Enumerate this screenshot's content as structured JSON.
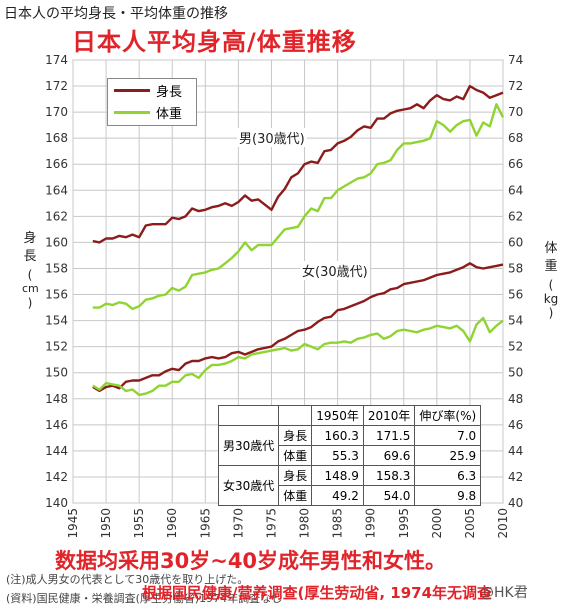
{
  "header": {
    "original_title": "日本人の平均身長・平均体重の推移",
    "overlay_title": "日本人平均身高/体重推移"
  },
  "labels": {
    "y_left_title_chars": [
      "身",
      "長"
    ],
    "y_left_unit": [
      "(",
      "cm",
      ")"
    ],
    "y_right_title_chars": [
      "体",
      "重"
    ],
    "y_right_unit": [
      "(",
      "kg",
      ")"
    ],
    "male_annotation": "男(30歳代)",
    "female_annotation": "女(30歳代)"
  },
  "legend": {
    "height_label": "身長",
    "weight_label": "体重"
  },
  "table": {
    "headers": [
      "",
      "",
      "1950年",
      "2010年",
      "伸び率(%)"
    ],
    "rows": [
      {
        "group": "男30歳代",
        "sub": "身長",
        "v1950": "160.3",
        "v2010": "171.5",
        "rate": "7.0"
      },
      {
        "group": "",
        "sub": "体重",
        "v1950": "55.3",
        "v2010": "69.6",
        "rate": "25.9"
      },
      {
        "group": "女30歳代",
        "sub": "身長",
        "v1950": "148.9",
        "v2010": "158.3",
        "rate": "6.3"
      },
      {
        "group": "",
        "sub": "体重",
        "v1950": "49.2",
        "v2010": "54.0",
        "rate": "9.8"
      }
    ]
  },
  "notes": {
    "overlay_note": "数据均采用30岁~40岁成年男性和女性。",
    "foot_note1": "(注)成人男女の代表として30歳代を取り上げた。",
    "foot_note2": "(資料)国民健康・栄養調査(厚生労働省)1974年調査なし",
    "overlay_source": "根据国民健康/营养调查(厚生劳动省, 1974年无调查",
    "watermark": "@HK君"
  },
  "colors": {
    "height_line": "#8b1c1c",
    "weight_line": "#8fd431",
    "overlay_red": "#e0242a",
    "grid": "#c8c8c8"
  },
  "chart_data": {
    "type": "line",
    "x_ticks": [
      1945,
      1950,
      1955,
      1960,
      1965,
      1970,
      1975,
      1980,
      1985,
      1990,
      1995,
      2000,
      2005,
      2010
    ],
    "y_left": {
      "label": "身長(cm)",
      "range": [
        140,
        174
      ],
      "ticks": [
        140,
        142,
        144,
        146,
        148,
        150,
        152,
        154,
        156,
        158,
        160,
        162,
        164,
        166,
        168,
        170,
        172,
        174
      ]
    },
    "y_right": {
      "label": "体重(kg)",
      "range": [
        40,
        74
      ],
      "ticks": [
        40,
        42,
        44,
        46,
        48,
        50,
        52,
        54,
        56,
        58,
        60,
        62,
        64,
        66,
        68,
        70,
        72,
        74
      ]
    },
    "grid": true,
    "legend_position": "top-left",
    "x": [
      1948,
      1949,
      1950,
      1951,
      1952,
      1953,
      1954,
      1955,
      1956,
      1957,
      1958,
      1959,
      1960,
      1961,
      1962,
      1963,
      1964,
      1965,
      1966,
      1967,
      1968,
      1969,
      1970,
      1971,
      1972,
      1973,
      1975,
      1976,
      1977,
      1978,
      1979,
      1980,
      1981,
      1982,
      1983,
      1984,
      1985,
      1986,
      1987,
      1988,
      1989,
      1990,
      1991,
      1992,
      1993,
      1994,
      1995,
      1996,
      1997,
      1998,
      1999,
      2000,
      2001,
      2002,
      2003,
      2004,
      2005,
      2006,
      2007,
      2008,
      2009,
      2010
    ],
    "series": [
      {
        "name": "身長",
        "axis": "left",
        "group": "男(30歳代)",
        "values": [
          160.1,
          160.0,
          160.3,
          160.3,
          160.5,
          160.4,
          160.6,
          160.4,
          161.3,
          161.4,
          161.4,
          161.4,
          161.9,
          161.8,
          162.0,
          162.6,
          162.4,
          162.5,
          162.7,
          162.8,
          163.0,
          162.8,
          163.1,
          163.6,
          163.2,
          163.3,
          162.5,
          163.5,
          164.1,
          165.0,
          165.3,
          166.0,
          166.2,
          166.1,
          167.0,
          167.1,
          167.6,
          167.8,
          168.1,
          168.6,
          168.9,
          168.8,
          169.5,
          169.5,
          169.9,
          170.1,
          170.2,
          170.3,
          170.6,
          170.3,
          170.9,
          171.3,
          171.0,
          170.9,
          171.2,
          171.0,
          172.0,
          171.7,
          171.5,
          171.1,
          171.3,
          171.5
        ]
      },
      {
        "name": "体重",
        "axis": "right",
        "group": "男(30歳代)",
        "values": [
          55.0,
          55.0,
          55.3,
          55.2,
          55.4,
          55.3,
          54.9,
          55.1,
          55.6,
          55.7,
          55.9,
          56.0,
          56.5,
          56.3,
          56.6,
          57.5,
          57.6,
          57.7,
          57.9,
          58.0,
          58.4,
          58.8,
          59.3,
          60.0,
          59.4,
          59.8,
          59.8,
          60.4,
          61.0,
          61.1,
          61.2,
          62.0,
          62.6,
          62.4,
          63.4,
          63.4,
          64.0,
          64.3,
          64.6,
          64.9,
          65.0,
          65.3,
          66.0,
          66.1,
          66.3,
          67.1,
          67.6,
          67.6,
          67.7,
          67.8,
          68.0,
          69.3,
          69.0,
          68.5,
          69.0,
          69.3,
          69.4,
          68.2,
          69.2,
          68.9,
          70.6,
          69.6
        ]
      },
      {
        "name": "身長",
        "axis": "left",
        "group": "女(30歳代)",
        "values": [
          148.9,
          148.6,
          148.9,
          149.0,
          148.8,
          149.3,
          149.4,
          149.4,
          149.6,
          149.8,
          149.8,
          150.1,
          150.3,
          150.2,
          150.7,
          150.9,
          150.9,
          151.1,
          151.2,
          151.1,
          151.2,
          151.5,
          151.6,
          151.4,
          151.6,
          151.8,
          152.0,
          152.4,
          152.6,
          152.9,
          153.2,
          153.3,
          153.5,
          153.9,
          154.2,
          154.3,
          154.8,
          154.9,
          155.1,
          155.3,
          155.5,
          155.8,
          156.0,
          156.1,
          156.4,
          156.5,
          156.8,
          156.9,
          157.0,
          157.1,
          157.3,
          157.5,
          157.6,
          157.7,
          157.9,
          158.1,
          158.4,
          158.1,
          158.0,
          158.1,
          158.2,
          158.3
        ]
      },
      {
        "name": "体重",
        "axis": "right",
        "group": "女(30歳代)",
        "values": [
          49.0,
          48.7,
          49.2,
          49.1,
          49.0,
          48.6,
          48.7,
          48.3,
          48.4,
          48.6,
          49.0,
          49.0,
          49.3,
          49.3,
          49.8,
          49.9,
          49.6,
          50.2,
          50.6,
          50.6,
          50.7,
          50.9,
          51.2,
          51.1,
          51.4,
          51.5,
          51.7,
          51.8,
          51.9,
          51.7,
          51.8,
          52.2,
          52.0,
          51.8,
          52.2,
          52.3,
          52.3,
          52.4,
          52.3,
          52.6,
          52.7,
          52.9,
          53.0,
          52.6,
          52.8,
          53.2,
          53.3,
          53.2,
          53.1,
          53.3,
          53.4,
          53.6,
          53.5,
          53.4,
          53.6,
          53.2,
          52.4,
          53.7,
          54.2,
          53.1,
          53.6,
          54.0
        ]
      }
    ]
  }
}
